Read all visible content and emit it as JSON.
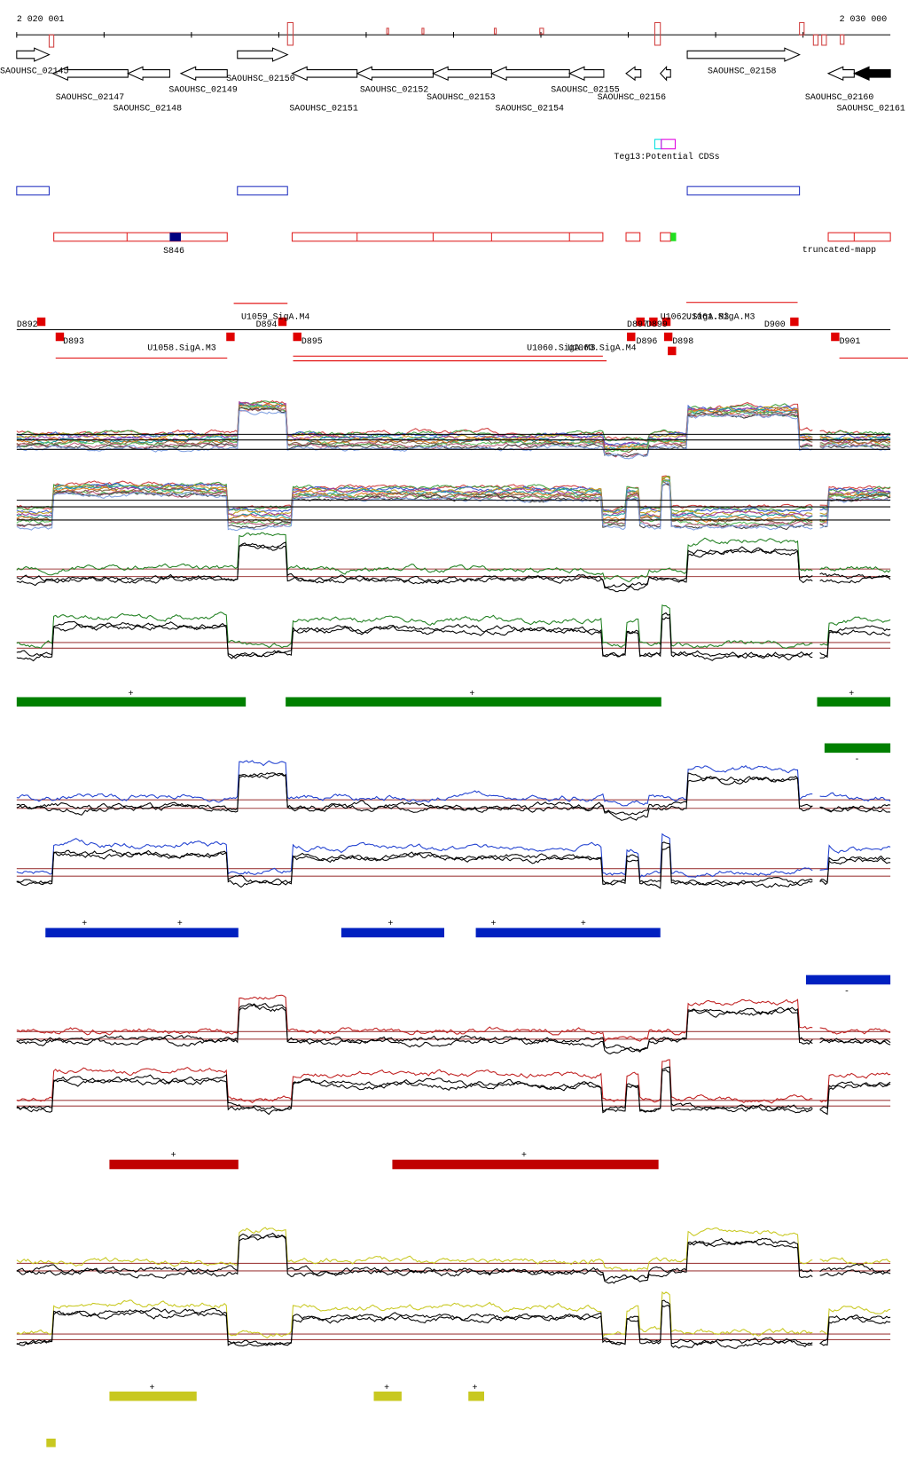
{
  "ruler": {
    "start": "2 020 001",
    "end": "2 030 000"
  },
  "genes": [
    "SAOUHSC_02145",
    "SAOUHSC_02147",
    "SAOUHSC_02148",
    "SAOUHSC_02149",
    "SAOUHSC_02150",
    "SAOUHSC_02151",
    "SAOUHSC_02152",
    "SAOUHSC_02153",
    "SAOUHSC_02154",
    "SAOUHSC_02155",
    "SAOUHSC_02156",
    "SAOUHSC_02158",
    "SAOUHSC_02160",
    "SAOUHSC_02161"
  ],
  "cds_label": "Teg13:Potential CDSs",
  "features": [
    "S846",
    "truncated-mapp"
  ],
  "promoters": [
    "D892",
    "D893",
    "U1059_SigA.M4",
    "D894",
    "U1058.SigA.M3",
    "D895",
    "U1060.SigA.M3",
    "U1063.SigA.M4",
    "D897",
    "D899",
    "D896",
    "U1062.SigA.M3",
    "U1061.SigA.M3",
    "D898",
    "D900",
    "D901"
  ],
  "strand_marks": [
    "+",
    "+",
    "+",
    "-",
    "+",
    "+",
    "+",
    "+",
    "+",
    "-",
    "+",
    "+",
    "+",
    "+",
    "+"
  ]
}
